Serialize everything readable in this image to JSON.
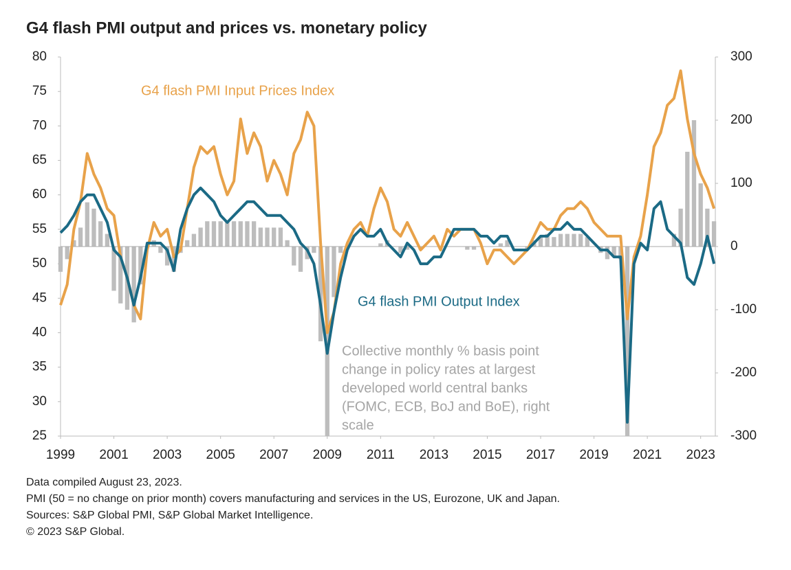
{
  "chart_data": {
    "type": "combo",
    "title": "G4 flash PMI output and prices vs. monetary policy",
    "x": [
      1999,
      1999.25,
      1999.5,
      1999.75,
      2000,
      2000.25,
      2000.5,
      2000.75,
      2001,
      2001.25,
      2001.5,
      2001.75,
      2002,
      2002.25,
      2002.5,
      2002.75,
      2003,
      2003.25,
      2003.5,
      2003.75,
      2004,
      2004.25,
      2004.5,
      2004.75,
      2005,
      2005.25,
      2005.5,
      2005.75,
      2006,
      2006.25,
      2006.5,
      2006.75,
      2007,
      2007.25,
      2007.5,
      2007.75,
      2008,
      2008.25,
      2008.5,
      2008.75,
      2009,
      2009.25,
      2009.5,
      2009.75,
      2010,
      2010.25,
      2010.5,
      2010.75,
      2011,
      2011.25,
      2011.5,
      2011.75,
      2012,
      2012.25,
      2012.5,
      2012.75,
      2013,
      2013.25,
      2013.5,
      2013.75,
      2014,
      2014.25,
      2014.5,
      2014.75,
      2015,
      2015.25,
      2015.5,
      2015.75,
      2016,
      2016.25,
      2016.5,
      2016.75,
      2017,
      2017.25,
      2017.5,
      2017.75,
      2018,
      2018.25,
      2018.5,
      2018.75,
      2019,
      2019.25,
      2019.5,
      2019.75,
      2020,
      2020.25,
      2020.5,
      2020.75,
      2021,
      2021.25,
      2021.5,
      2021.75,
      2022,
      2022.25,
      2022.5,
      2022.75,
      2023,
      2023.25,
      2023.5
    ],
    "series": [
      {
        "kind": "bar",
        "axis": "y2",
        "color": "#bdbdbd",
        "annotation": [
          "Collective monthly % basis point",
          "change in policy rates at largest",
          "developed world central banks",
          "(FOMC, ECB, BoJ and BoE), right",
          "scale"
        ],
        "values": [
          -40,
          -20,
          10,
          30,
          70,
          60,
          40,
          20,
          -70,
          -90,
          -100,
          -120,
          -60,
          0,
          10,
          -10,
          -30,
          -40,
          -10,
          10,
          20,
          30,
          40,
          40,
          40,
          40,
          40,
          40,
          40,
          40,
          30,
          30,
          30,
          30,
          10,
          -30,
          -40,
          -20,
          -10,
          -150,
          -300,
          -80,
          -10,
          0,
          0,
          0,
          0,
          0,
          5,
          10,
          0,
          -10,
          -5,
          0,
          -5,
          0,
          0,
          0,
          0,
          0,
          0,
          -5,
          -5,
          0,
          0,
          0,
          5,
          10,
          0,
          0,
          -5,
          10,
          15,
          20,
          15,
          20,
          20,
          20,
          20,
          15,
          0,
          -10,
          -20,
          -15,
          -20,
          -300,
          0,
          0,
          0,
          0,
          0,
          0,
          20,
          60,
          150,
          200,
          100,
          60,
          40
        ]
      },
      {
        "kind": "line",
        "axis": "y",
        "color": "#e8a24a",
        "name": "G4 flash PMI Input Prices Index",
        "values": [
          44,
          47,
          55,
          59,
          66,
          63,
          61,
          58,
          57,
          51,
          48,
          44,
          42,
          52,
          56,
          54,
          55,
          51,
          52,
          58,
          64,
          67,
          66,
          67,
          63,
          60,
          62,
          71,
          66,
          69,
          67,
          62,
          65,
          63,
          60,
          66,
          68,
          72,
          70,
          53,
          40,
          43,
          50,
          53,
          55,
          56,
          54,
          58,
          61,
          59,
          55,
          54,
          56,
          54,
          52,
          53,
          54,
          52,
          55,
          54,
          55,
          55,
          55,
          53,
          50,
          52,
          52,
          51,
          50,
          51,
          52,
          54,
          56,
          55,
          55,
          57,
          58,
          58,
          59,
          58,
          56,
          55,
          54,
          54,
          54,
          42,
          51,
          54,
          60,
          67,
          69,
          73,
          74,
          78,
          71,
          66,
          63,
          61,
          58
        ]
      },
      {
        "kind": "line",
        "axis": "y",
        "color": "#1b6a85",
        "name": "G4 flash PMI Output Index",
        "values": [
          54.5,
          55.5,
          57,
          59,
          60,
          60,
          58,
          56,
          52,
          51,
          48,
          44,
          48,
          53,
          53,
          53,
          52,
          49,
          55,
          58,
          60,
          61,
          60,
          59,
          57,
          56,
          57,
          58,
          59,
          59,
          58,
          57,
          57,
          57,
          56,
          55,
          53,
          52,
          50,
          44,
          37,
          43,
          48,
          52,
          54,
          55,
          54,
          54,
          55,
          53,
          52,
          51,
          53,
          52,
          50,
          50,
          51,
          51,
          53,
          55,
          55,
          55,
          55,
          54,
          54,
          53,
          54,
          54,
          52,
          52,
          52,
          53,
          54,
          54,
          55,
          55,
          56,
          55,
          55,
          54,
          53,
          52,
          52,
          51,
          51,
          27,
          50,
          53,
          52,
          58,
          59,
          55,
          54,
          53,
          48,
          47,
          50,
          54,
          50
        ]
      }
    ],
    "xlim": [
      1999,
      2023.55
    ],
    "xticks": [
      1999,
      2001,
      2003,
      2005,
      2007,
      2009,
      2011,
      2013,
      2015,
      2017,
      2019,
      2021,
      2023
    ],
    "ylim": [
      25,
      80
    ],
    "yticks": [
      25,
      30,
      35,
      40,
      45,
      50,
      55,
      60,
      65,
      70,
      75,
      80
    ],
    "y2lim": [
      -300,
      300
    ],
    "y2ticks": [
      -300,
      -200,
      -100,
      0,
      100,
      200,
      300
    ],
    "grid": false,
    "notes": [
      "Data compiled August 23, 2023.",
      "PMI (50 = no change on prior month) covers manufacturing and services in the US, Eurozone, UK and Japan.",
      "Sources: S&P Global PMI, S&P Global Market Intelligence.",
      "© 2023 S&P Global."
    ]
  }
}
